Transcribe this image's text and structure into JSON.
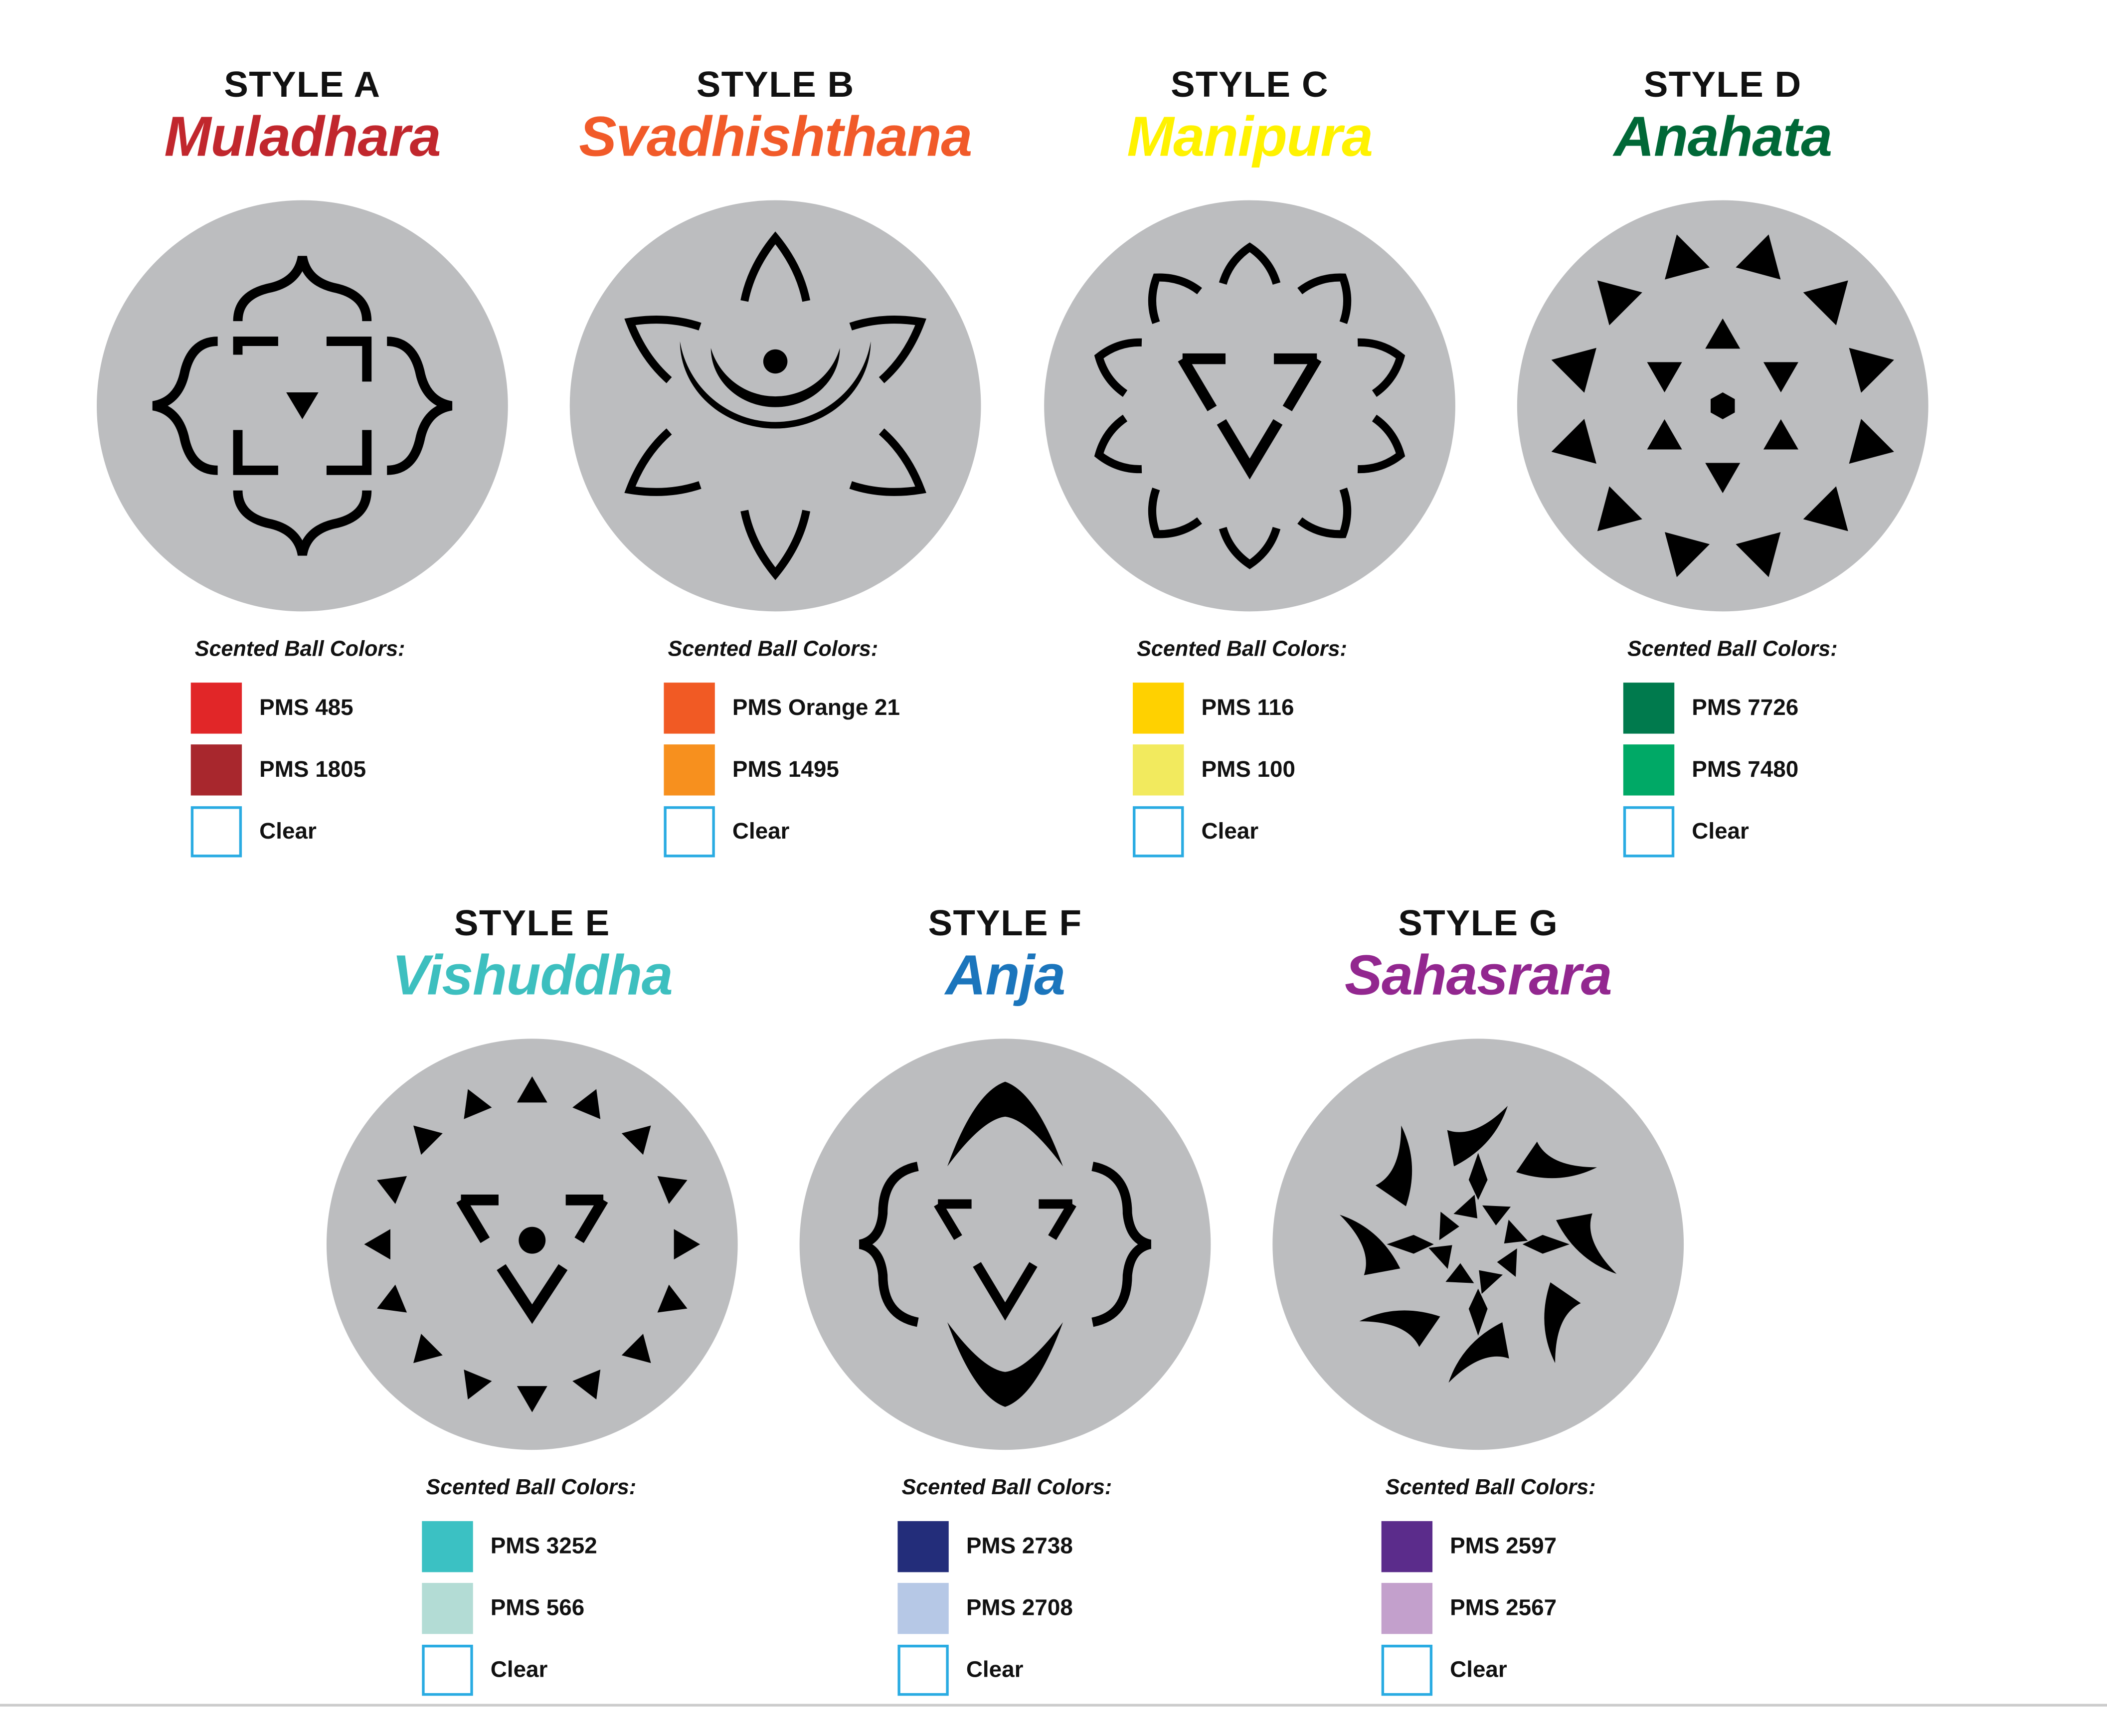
{
  "legend_heading": "Scented Ball Colors:",
  "clear_border_color": "#29abe2",
  "symbol_color": "#000000",
  "disc_color": "#bcbdbf",
  "styles": [
    {
      "label": "STYLE A",
      "name": "Muladhara",
      "color": "#c1272d",
      "symbol": "muladhara-symbol",
      "swatches": [
        {
          "label": "PMS 485",
          "color": "#e12628"
        },
        {
          "label": "PMS 1805",
          "color": "#a8272d"
        },
        {
          "label": "Clear",
          "color": ""
        }
      ]
    },
    {
      "label": "STYLE B",
      "name": "Svadhishthana",
      "color": "#f15a29",
      "symbol": "svadhishthana-symbol",
      "swatches": [
        {
          "label": "PMS Orange 21",
          "color": "#f15a24"
        },
        {
          "label": "PMS 1495",
          "color": "#f7901e"
        },
        {
          "label": "Clear",
          "color": ""
        }
      ]
    },
    {
      "label": "STYLE C",
      "name": "Manipura",
      "color": "#fff200",
      "symbol": "manipura-symbol",
      "swatches": [
        {
          "label": "PMS 116",
          "color": "#ffd100"
        },
        {
          "label": "PMS 100",
          "color": "#f2ea5e"
        },
        {
          "label": "Clear",
          "color": ""
        }
      ]
    },
    {
      "label": "STYLE D",
      "name": "Anahata",
      "color": "#006837",
      "symbol": "anahata-symbol",
      "swatches": [
        {
          "label": "PMS 7726",
          "color": "#007a4d"
        },
        {
          "label": "PMS 7480",
          "color": "#00a966"
        },
        {
          "label": "Clear",
          "color": ""
        }
      ]
    },
    {
      "label": "STYLE E",
      "name": "Vishuddha",
      "color": "#3dbfbf",
      "symbol": "vishuddha-symbol",
      "swatches": [
        {
          "label": "PMS 3252",
          "color": "#3bc1c3"
        },
        {
          "label": "PMS 566",
          "color": "#b3dcd5"
        },
        {
          "label": "Clear",
          "color": ""
        }
      ]
    },
    {
      "label": "STYLE F",
      "name": "Anja",
      "color": "#1b75bc",
      "symbol": "anja-symbol",
      "swatches": [
        {
          "label": "PMS 2738",
          "color": "#232d7a"
        },
        {
          "label": "PMS 2708",
          "color": "#b6c8e6"
        },
        {
          "label": "Clear",
          "color": ""
        }
      ]
    },
    {
      "label": "STYLE G",
      "name": "Sahasrara",
      "color": "#92278f",
      "symbol": "sahasrara-symbol",
      "swatches": [
        {
          "label": "PMS 2597",
          "color": "#5b2c8b"
        },
        {
          "label": "PMS 2567",
          "color": "#c3a0cc"
        },
        {
          "label": "Clear",
          "color": ""
        }
      ]
    }
  ]
}
